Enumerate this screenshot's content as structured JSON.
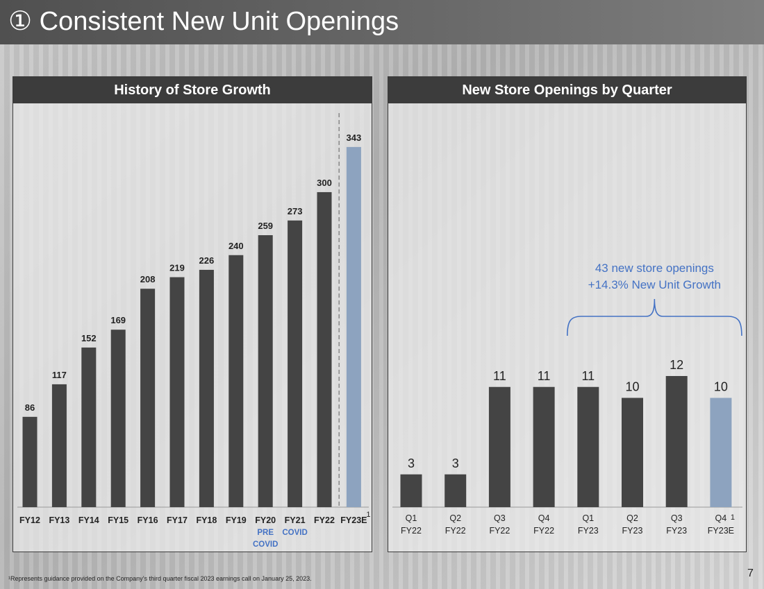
{
  "page": {
    "title": "Consistent New Unit Openings",
    "title_marker": "①",
    "footnote": "¹Represents guidance provided on the Company’s third quarter fiscal 2023 earnings call on January 25, 2023.",
    "page_number": "7"
  },
  "colors": {
    "bar_dark": "#444444",
    "bar_estimate": "#8da3bf",
    "accent_blue": "#4472c4"
  },
  "chart_data": [
    {
      "type": "bar",
      "title": "History of Store Growth",
      "categories": [
        "FY12",
        "FY13",
        "FY14",
        "FY15",
        "FY16",
        "FY17",
        "FY18",
        "FY19",
        "FY20",
        "FY21",
        "FY22",
        "FY23E"
      ],
      "values": [
        86,
        117,
        152,
        169,
        208,
        219,
        226,
        240,
        259,
        273,
        300,
        343
      ],
      "estimate_index": 11,
      "ylim": [
        0,
        370
      ],
      "footnote_marker": "1",
      "category_notes": [
        {
          "category": "FY20",
          "text": [
            "PRE",
            "COVID"
          ]
        },
        {
          "category": "FY21",
          "text": [
            "COVID"
          ]
        }
      ]
    },
    {
      "type": "bar",
      "title": "New Store Openings by Quarter",
      "categories": [
        [
          "Q1",
          "FY22"
        ],
        [
          "Q2",
          "FY22"
        ],
        [
          "Q3",
          "FY22"
        ],
        [
          "Q4",
          "FY22"
        ],
        [
          "Q1",
          "FY23"
        ],
        [
          "Q2",
          "FY23"
        ],
        [
          "Q3",
          "FY23"
        ],
        [
          "Q4",
          "FY23E"
        ]
      ],
      "values": [
        3,
        3,
        11,
        11,
        11,
        10,
        12,
        10
      ],
      "estimate_index": 7,
      "ylim": [
        0,
        30
      ],
      "footnote_marker": "1",
      "annotation": {
        "lines": [
          "43 new store openings",
          "+14.3% New Unit Growth"
        ],
        "from_index": 4,
        "to_index": 7
      }
    }
  ]
}
